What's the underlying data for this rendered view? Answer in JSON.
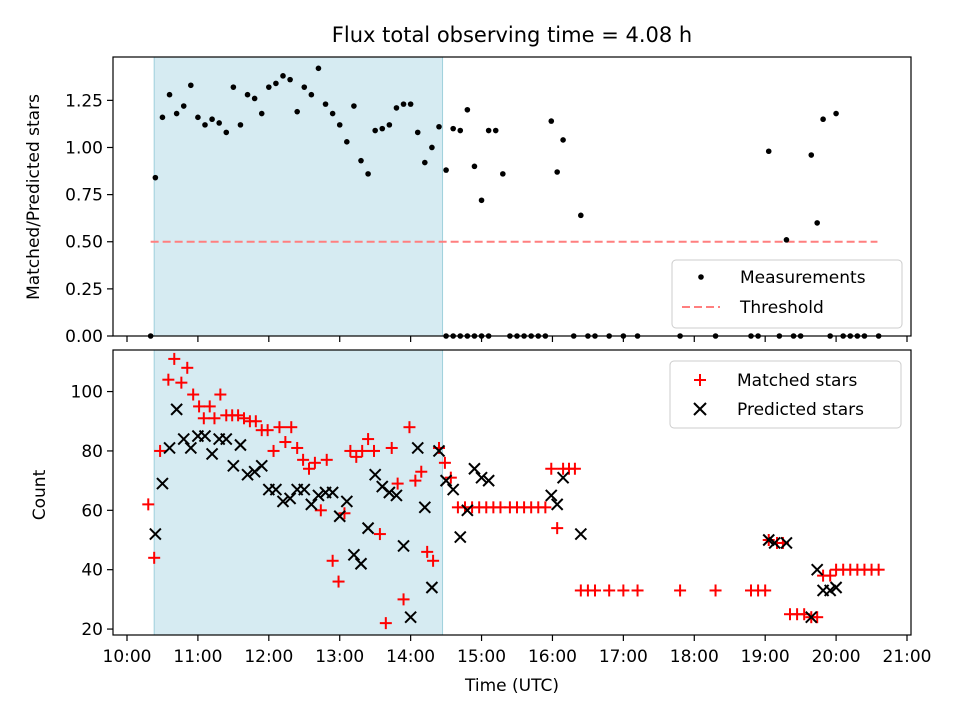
{
  "chart_data": [
    {
      "type": "scatter",
      "title": "Flux total observing time = 4.08 h",
      "xlabel": "",
      "ylabel": "Matched/Predicted stars",
      "x_unit": "time (UTC, hours)",
      "xlim": [
        "10:00",
        "21:00"
      ],
      "ylim": [
        0,
        1.48
      ],
      "yticks": [
        "0.00",
        "0.25",
        "0.50",
        "0.75",
        "1.00",
        "1.25"
      ],
      "highlight_span": [
        "10:23",
        "14:27"
      ],
      "highlight_color": "#add8e6",
      "legend_position": "lower-right",
      "legend": [
        "Measurements",
        "Threshold"
      ],
      "series": [
        {
          "name": "Measurements",
          "marker": "dot",
          "color": "#000000",
          "points": [
            [
              "10:20",
              0.0
            ],
            [
              "10:24",
              0.84
            ],
            [
              "10:30",
              1.16
            ],
            [
              "10:36",
              1.28
            ],
            [
              "10:42",
              1.18
            ],
            [
              "10:48",
              1.22
            ],
            [
              "10:54",
              1.33
            ],
            [
              "11:00",
              1.16
            ],
            [
              "11:06",
              1.12
            ],
            [
              "11:12",
              1.15
            ],
            [
              "11:18",
              1.13
            ],
            [
              "11:24",
              1.08
            ],
            [
              "11:30",
              1.32
            ],
            [
              "11:36",
              1.12
            ],
            [
              "11:42",
              1.28
            ],
            [
              "11:48",
              1.26
            ],
            [
              "11:54",
              1.18
            ],
            [
              "12:00",
              1.32
            ],
            [
              "12:06",
              1.34
            ],
            [
              "12:12",
              1.38
            ],
            [
              "12:18",
              1.36
            ],
            [
              "12:24",
              1.19
            ],
            [
              "12:30",
              1.32
            ],
            [
              "12:36",
              1.28
            ],
            [
              "12:42",
              1.42
            ],
            [
              "12:48",
              1.23
            ],
            [
              "12:54",
              1.18
            ],
            [
              "13:00",
              1.12
            ],
            [
              "13:06",
              1.03
            ],
            [
              "13:12",
              1.22
            ],
            [
              "13:18",
              0.93
            ],
            [
              "13:24",
              0.86
            ],
            [
              "13:30",
              1.09
            ],
            [
              "13:36",
              1.1
            ],
            [
              "13:42",
              1.12
            ],
            [
              "13:48",
              1.21
            ],
            [
              "13:54",
              1.23
            ],
            [
              "14:00",
              1.23
            ],
            [
              "14:06",
              1.08
            ],
            [
              "14:12",
              0.92
            ],
            [
              "14:18",
              1.0
            ],
            [
              "14:24",
              1.11
            ],
            [
              "14:30",
              0.88
            ],
            [
              "14:36",
              1.1
            ],
            [
              "14:42",
              1.09
            ],
            [
              "14:48",
              1.2
            ],
            [
              "14:54",
              0.9
            ],
            [
              "15:00",
              0.72
            ],
            [
              "15:06",
              1.09
            ],
            [
              "15:12",
              1.09
            ],
            [
              "15:18",
              0.86
            ],
            [
              "14:30",
              0.0
            ],
            [
              "14:36",
              0.0
            ],
            [
              "14:42",
              0.0
            ],
            [
              "14:48",
              0.0
            ],
            [
              "14:54",
              0.0
            ],
            [
              "15:00",
              0.0
            ],
            [
              "15:06",
              0.0
            ],
            [
              "15:24",
              0.0
            ],
            [
              "15:30",
              0.0
            ],
            [
              "15:36",
              0.0
            ],
            [
              "15:42",
              0.0
            ],
            [
              "15:48",
              0.0
            ],
            [
              "15:54",
              0.0
            ],
            [
              "15:59",
              1.14
            ],
            [
              "16:04",
              0.87
            ],
            [
              "16:09",
              1.04
            ],
            [
              "16:18",
              0.0
            ],
            [
              "16:24",
              0.64
            ],
            [
              "16:30",
              0.0
            ],
            [
              "16:36",
              0.0
            ],
            [
              "16:48",
              0.0
            ],
            [
              "17:00",
              0.0
            ],
            [
              "17:12",
              0.0
            ],
            [
              "17:48",
              0.0
            ],
            [
              "18:18",
              0.0
            ],
            [
              "18:48",
              0.0
            ],
            [
              "18:54",
              0.0
            ],
            [
              "19:03",
              0.98
            ],
            [
              "19:12",
              0.0
            ],
            [
              "19:18",
              0.51
            ],
            [
              "19:24",
              0.0
            ],
            [
              "19:30",
              0.0
            ],
            [
              "19:39",
              0.96
            ],
            [
              "19:44",
              0.6
            ],
            [
              "19:49",
              1.15
            ],
            [
              "19:55",
              0.0
            ],
            [
              "20:00",
              1.18
            ],
            [
              "20:06",
              0.0
            ],
            [
              "20:12",
              0.0
            ],
            [
              "20:18",
              0.0
            ],
            [
              "20:24",
              0.0
            ],
            [
              "20:36",
              0.0
            ]
          ]
        },
        {
          "name": "Threshold",
          "line": "dashed",
          "color": "#ff7f7f",
          "points": [
            [
              "10:20",
              0.5
            ],
            [
              "20:35",
              0.5
            ]
          ]
        }
      ]
    },
    {
      "type": "scatter",
      "title": "",
      "xlabel": "Time (UTC)",
      "ylabel": "Count",
      "xlim": [
        "10:00",
        "21:00"
      ],
      "ylim": [
        18,
        114
      ],
      "xticks": [
        "10:00",
        "11:00",
        "12:00",
        "13:00",
        "14:00",
        "15:00",
        "16:00",
        "17:00",
        "18:00",
        "19:00",
        "20:00",
        "21:00"
      ],
      "yticks": [
        "20",
        "40",
        "60",
        "80",
        "100"
      ],
      "highlight_span": [
        "10:23",
        "14:27"
      ],
      "highlight_color": "#add8e6",
      "legend_position": "top-right",
      "legend": [
        "Matched stars",
        "Predicted stars"
      ],
      "series": [
        {
          "name": "Matched stars",
          "marker": "plus",
          "color": "#ff0000",
          "points": [
            [
              "10:18",
              62
            ],
            [
              "10:23",
              44
            ],
            [
              "10:28",
              80
            ],
            [
              "10:35",
              104
            ],
            [
              "10:40",
              111
            ],
            [
              "10:46",
              103
            ],
            [
              "10:51",
              108
            ],
            [
              "10:56",
              99
            ],
            [
              "11:01",
              95
            ],
            [
              "11:05",
              91
            ],
            [
              "11:10",
              95
            ],
            [
              "11:14",
              91
            ],
            [
              "11:19",
              99
            ],
            [
              "11:24",
              92
            ],
            [
              "11:29",
              92
            ],
            [
              "11:34",
              92
            ],
            [
              "11:39",
              91
            ],
            [
              "11:44",
              90
            ],
            [
              "11:49",
              90
            ],
            [
              "11:54",
              87
            ],
            [
              "11:59",
              87
            ],
            [
              "12:04",
              80
            ],
            [
              "12:09",
              88
            ],
            [
              "12:14",
              83
            ],
            [
              "12:19",
              88
            ],
            [
              "12:24",
              81
            ],
            [
              "12:29",
              77
            ],
            [
              "12:34",
              74
            ],
            [
              "12:39",
              76
            ],
            [
              "12:44",
              60
            ],
            [
              "12:49",
              77
            ],
            [
              "12:54",
              43
            ],
            [
              "12:59",
              36
            ],
            [
              "13:04",
              59
            ],
            [
              "13:09",
              80
            ],
            [
              "13:14",
              78
            ],
            [
              "13:19",
              80
            ],
            [
              "13:24",
              84
            ],
            [
              "13:29",
              80
            ],
            [
              "13:34",
              52
            ],
            [
              "13:39",
              22
            ],
            [
              "13:44",
              81
            ],
            [
              "13:49",
              69
            ],
            [
              "13:54",
              30
            ],
            [
              "13:59",
              88
            ],
            [
              "14:04",
              70
            ],
            [
              "14:09",
              73
            ],
            [
              "14:14",
              46
            ],
            [
              "14:19",
              43
            ],
            [
              "14:24",
              81
            ],
            [
              "14:29",
              76
            ],
            [
              "14:34",
              71
            ],
            [
              "14:40",
              61
            ],
            [
              "14:46",
              61
            ],
            [
              "14:52",
              61
            ],
            [
              "14:58",
              61
            ],
            [
              "15:04",
              61
            ],
            [
              "15:10",
              61
            ],
            [
              "15:16",
              61
            ],
            [
              "15:24",
              61
            ],
            [
              "15:30",
              61
            ],
            [
              "15:36",
              61
            ],
            [
              "15:42",
              61
            ],
            [
              "15:48",
              61
            ],
            [
              "15:54",
              61
            ],
            [
              "15:59",
              74
            ],
            [
              "16:04",
              54
            ],
            [
              "16:09",
              74
            ],
            [
              "16:14",
              74
            ],
            [
              "16:19",
              74
            ],
            [
              "16:24",
              33
            ],
            [
              "16:30",
              33
            ],
            [
              "16:36",
              33
            ],
            [
              "16:48",
              33
            ],
            [
              "17:00",
              33
            ],
            [
              "17:12",
              33
            ],
            [
              "17:48",
              33
            ],
            [
              "18:18",
              33
            ],
            [
              "18:48",
              33
            ],
            [
              "18:54",
              33
            ],
            [
              "19:00",
              33
            ],
            [
              "19:03",
              50
            ],
            [
              "19:10",
              49
            ],
            [
              "19:15",
              49
            ],
            [
              "19:21",
              25
            ],
            [
              "19:27",
              25
            ],
            [
              "19:33",
              25
            ],
            [
              "19:39",
              24
            ],
            [
              "19:44",
              24
            ],
            [
              "19:49",
              38
            ],
            [
              "19:55",
              38
            ],
            [
              "20:00",
              40
            ],
            [
              "20:06",
              40
            ],
            [
              "20:12",
              40
            ],
            [
              "20:18",
              40
            ],
            [
              "20:24",
              40
            ],
            [
              "20:30",
              40
            ],
            [
              "20:36",
              40
            ]
          ]
        },
        {
          "name": "Predicted stars",
          "marker": "x",
          "color": "#000000",
          "points": [
            [
              "10:24",
              52
            ],
            [
              "10:30",
              69
            ],
            [
              "10:36",
              81
            ],
            [
              "10:42",
              94
            ],
            [
              "10:48",
              84
            ],
            [
              "10:54",
              81
            ],
            [
              "11:00",
              85
            ],
            [
              "11:06",
              85
            ],
            [
              "11:12",
              79
            ],
            [
              "11:18",
              84
            ],
            [
              "11:24",
              84
            ],
            [
              "11:30",
              75
            ],
            [
              "11:36",
              82
            ],
            [
              "11:42",
              72
            ],
            [
              "11:48",
              73
            ],
            [
              "11:54",
              75
            ],
            [
              "12:00",
              67
            ],
            [
              "12:06",
              67
            ],
            [
              "12:12",
              63
            ],
            [
              "12:18",
              64
            ],
            [
              "12:24",
              67
            ],
            [
              "12:30",
              67
            ],
            [
              "12:36",
              62
            ],
            [
              "12:42",
              65
            ],
            [
              "12:48",
              66
            ],
            [
              "12:54",
              66
            ],
            [
              "13:00",
              58
            ],
            [
              "13:06",
              63
            ],
            [
              "13:12",
              45
            ],
            [
              "13:18",
              42
            ],
            [
              "13:24",
              54
            ],
            [
              "13:30",
              72
            ],
            [
              "13:36",
              68
            ],
            [
              "13:42",
              66
            ],
            [
              "13:48",
              65
            ],
            [
              "13:54",
              48
            ],
            [
              "14:00",
              24
            ],
            [
              "14:06",
              81
            ],
            [
              "14:12",
              61
            ],
            [
              "14:18",
              34
            ],
            [
              "14:24",
              80
            ],
            [
              "14:30",
              70
            ],
            [
              "14:36",
              67
            ],
            [
              "14:42",
              51
            ],
            [
              "14:48",
              60
            ],
            [
              "14:54",
              74
            ],
            [
              "15:00",
              71
            ],
            [
              "15:06",
              70
            ],
            [
              "15:59",
              65
            ],
            [
              "16:04",
              62
            ],
            [
              "16:09",
              71
            ],
            [
              "16:24",
              52
            ],
            [
              "19:03",
              50
            ],
            [
              "19:08",
              49
            ],
            [
              "19:18",
              49
            ],
            [
              "19:39",
              24
            ],
            [
              "19:44",
              40
            ],
            [
              "19:49",
              33
            ],
            [
              "19:55",
              33
            ],
            [
              "20:00",
              34
            ]
          ]
        }
      ]
    }
  ]
}
